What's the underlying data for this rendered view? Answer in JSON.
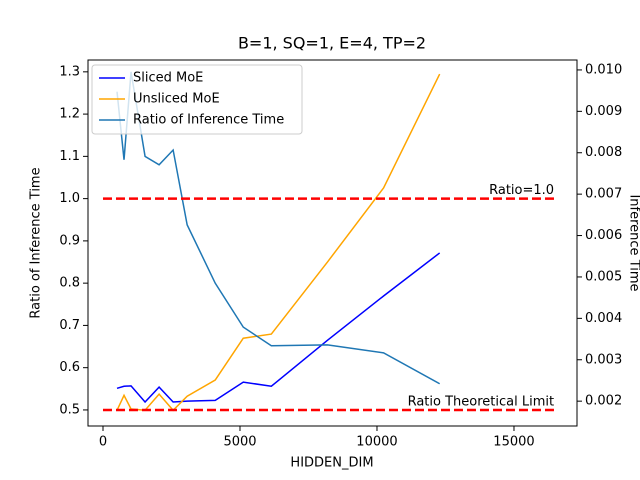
{
  "chart_data": {
    "type": "line",
    "title": "B=1, SQ=1, E=4, TP=2",
    "x_label": "HIDDEN_DIM",
    "y_label": "Ratio of Inference Time",
    "y2_label": "Inference Time",
    "x": [
      512,
      768,
      1024,
      1536,
      2048,
      2560,
      3072,
      4096,
      5120,
      6144,
      8192,
      10240,
      12288
    ],
    "series": [
      {
        "name": "Sliced MoE",
        "color": "#0000ff",
        "axis": "y2",
        "values": [
          0.00231,
          0.00236,
          0.00237,
          0.00198,
          0.00234,
          0.00198,
          0.002,
          0.00202,
          0.00246,
          0.00236,
          0.00347,
          0.00454,
          0.00558
        ]
      },
      {
        "name": "Unsliced MoE",
        "color": "#ffa500",
        "axis": "y2",
        "values": [
          0.00178,
          0.00214,
          0.00181,
          0.00178,
          0.00217,
          0.00178,
          0.00212,
          0.00251,
          0.00352,
          0.00362,
          0.00536,
          0.00715,
          0.0099
        ]
      },
      {
        "name": "Ratio of Inference Time",
        "color": "#1f77b4",
        "axis": "y",
        "values": [
          1.253,
          1.092,
          1.3,
          1.1,
          1.08,
          1.115,
          0.938,
          0.8,
          0.696,
          0.652,
          0.654,
          0.635,
          0.562
        ]
      }
    ],
    "reference_lines": [
      {
        "value": 1.0,
        "label": "Ratio=1.0",
        "xrange": [
          0,
          16500
        ],
        "color": "#ff0000"
      },
      {
        "value": 0.5,
        "label": "Ratio Theoretical Limit",
        "xrange": [
          0,
          16500
        ],
        "color": "#ff0000"
      }
    ],
    "xlim": [
      -547,
      17300
    ],
    "xticks": [
      0,
      5000,
      10000,
      15000
    ],
    "ylim": [
      0.462,
      1.328
    ],
    "yticks": [
      0.5,
      0.6,
      0.7,
      0.8,
      0.9,
      {
        "value": 1.0,
        "label": "1.0"
      },
      1.1,
      1.2,
      1.3
    ],
    "y2lim": [
      0.0014,
      0.01024
    ],
    "y2ticks": [
      0.002,
      0.003,
      0.004,
      0.005,
      0.006,
      0.007,
      0.008,
      0.009,
      {
        "value": 0.01,
        "label": "0.010"
      }
    ],
    "legend": "upper left",
    "grid": false
  }
}
